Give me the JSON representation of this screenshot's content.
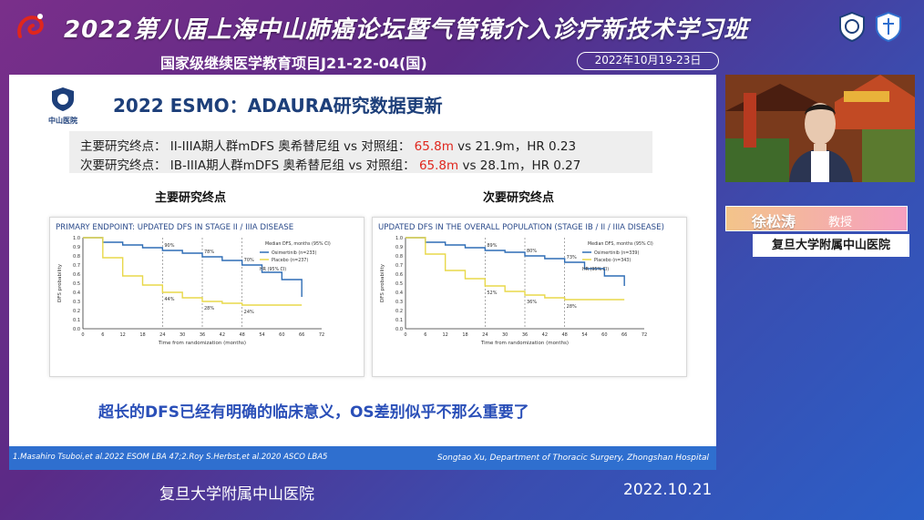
{
  "banner": {
    "title": "2022第八届上海中山肺癌论坛暨气管镜介入诊疗新技术学习班",
    "subtitle": "国家级继续医学教育项目J21-22-04(国)",
    "date_range": "2022年10月19-23日"
  },
  "slide": {
    "logo_text": "中山医院",
    "title": "2022 ESMO：ADAURA研究数据更新",
    "primary_endpoint": {
      "label": "主要研究终点：",
      "text_before": "II-IIIA期人群mDFS 奥希替尼组 vs 对照组：",
      "highlight": "65.8m",
      "text_after": "vs 21.9m，HR 0.23"
    },
    "secondary_endpoint": {
      "label": "次要研究终点：",
      "text_before": "IB-IIIA期人群mDFS 奥希替尼组 vs 对照组：",
      "highlight": "65.8m",
      "text_after": "vs 28.1m，HR 0.27"
    },
    "caption_left": "主要研究终点",
    "caption_right": "次要研究终点",
    "conclusion": "超长的DFS已经有明确的临床意义，OS差别似乎不那么重要了",
    "footer_ref": "1.Masahiro Tsuboi,et al.2022 ESOM LBA 47;2.Roy S.Herbst,et al.2020 ASCO LBA5",
    "footer_author": "Songtao Xu, Department of Thoracic Surgery, Zhongshan Hospital"
  },
  "speaker": {
    "name": "徐松涛",
    "title": "教授",
    "affiliation": "复旦大学附属中山医院"
  },
  "bottom": {
    "left_text": "复旦大学附属中山医院",
    "date": "2022.10.21"
  },
  "colors": {
    "osimertinib": "#2f6db5",
    "placebo": "#e8d84a",
    "highlight": "#e0261d",
    "footer_bar": "#2f6fcf"
  },
  "chart_data": [
    {
      "type": "line",
      "title": "PRIMARY ENDPOINT: UPDATED DFS IN STAGE II / IIIA DISEASE",
      "xlabel": "Time from randomization (months)",
      "ylabel": "DFS probability",
      "xlim": [
        0,
        72
      ],
      "ylim": [
        0,
        1.0
      ],
      "x_ticks": [
        0,
        6,
        12,
        18,
        24,
        30,
        36,
        42,
        48,
        54,
        60,
        66,
        72
      ],
      "y_ticks": [
        0.0,
        0.1,
        0.2,
        0.3,
        0.4,
        0.5,
        0.6,
        0.7,
        0.8,
        0.9,
        1.0
      ],
      "landmark_labels": [
        "90%",
        "44%",
        "78%",
        "28%",
        "70%",
        "24%"
      ],
      "legend_title": "Median DFS, months (95% CI)",
      "series": [
        {
          "name": "Osimertinib (n=233)",
          "x": [
            0,
            6,
            12,
            18,
            24,
            30,
            36,
            42,
            48,
            54,
            60,
            66
          ],
          "y": [
            1.0,
            0.95,
            0.92,
            0.89,
            0.86,
            0.83,
            0.79,
            0.75,
            0.7,
            0.62,
            0.54,
            0.35
          ]
        },
        {
          "name": "Placebo (n=237)",
          "x": [
            0,
            6,
            12,
            18,
            24,
            30,
            36,
            42,
            48,
            54,
            60,
            66
          ],
          "y": [
            1.0,
            0.78,
            0.58,
            0.48,
            0.4,
            0.34,
            0.3,
            0.28,
            0.26,
            0.26,
            0.26,
            0.26
          ]
        }
      ],
      "hr_text": "HR (95% CI)"
    },
    {
      "type": "line",
      "title": "UPDATED DFS IN THE OVERALL POPULATION (STAGE IB / II / IIIA DISEASE)",
      "xlabel": "Time from randomization (months)",
      "ylabel": "DFS probability",
      "xlim": [
        0,
        72
      ],
      "ylim": [
        0,
        1.0
      ],
      "x_ticks": [
        0,
        6,
        12,
        18,
        24,
        30,
        36,
        42,
        48,
        54,
        60,
        66,
        72
      ],
      "y_ticks": [
        0.0,
        0.1,
        0.2,
        0.3,
        0.4,
        0.5,
        0.6,
        0.7,
        0.8,
        0.9,
        1.0
      ],
      "landmark_labels": [
        "89%",
        "52%",
        "80%",
        "36%",
        "73%",
        "28%"
      ],
      "legend_title": "Median DFS, months (95% CI)",
      "series": [
        {
          "name": "Osimertinib (n=339)",
          "x": [
            0,
            6,
            12,
            18,
            24,
            30,
            36,
            42,
            48,
            54,
            60,
            66
          ],
          "y": [
            1.0,
            0.95,
            0.92,
            0.89,
            0.86,
            0.84,
            0.8,
            0.77,
            0.73,
            0.66,
            0.58,
            0.47
          ]
        },
        {
          "name": "Placebo (n=343)",
          "x": [
            0,
            6,
            12,
            18,
            24,
            30,
            36,
            42,
            48,
            54,
            60,
            66
          ],
          "y": [
            1.0,
            0.82,
            0.64,
            0.55,
            0.47,
            0.41,
            0.37,
            0.34,
            0.32,
            0.32,
            0.32,
            0.32
          ]
        }
      ],
      "hr_text": "HR (95% CI)"
    }
  ]
}
